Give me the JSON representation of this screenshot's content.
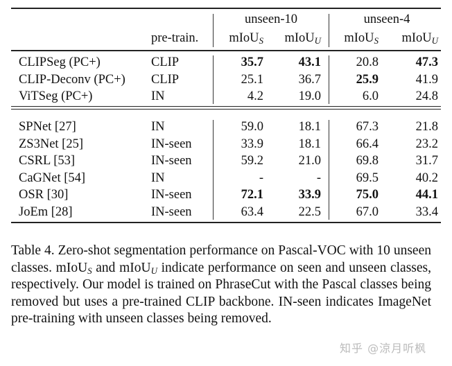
{
  "table": {
    "groups": [
      "unseen-10",
      "unseen-4"
    ],
    "header": {
      "pretrain": "pre-train.",
      "metric_base": "mIoU",
      "sub_seen": "S",
      "sub_unseen": "U"
    },
    "section1": [
      {
        "name": "CLIPSeg (PC+)",
        "pretrain": "CLIP",
        "values": [
          "35.7",
          "43.1",
          "20.8",
          "47.3"
        ],
        "bold": [
          true,
          true,
          false,
          true
        ]
      },
      {
        "name": "CLIP-Deconv (PC+)",
        "pretrain": "CLIP",
        "values": [
          "25.1",
          "36.7",
          "25.9",
          "41.9"
        ],
        "bold": [
          false,
          false,
          true,
          false
        ]
      },
      {
        "name": "ViTSeg (PC+)",
        "pretrain": "IN",
        "values": [
          "4.2",
          "19.0",
          "6.0",
          "24.8"
        ],
        "bold": [
          false,
          false,
          false,
          false
        ]
      }
    ],
    "section2": [
      {
        "name": "SPNet [27]",
        "pretrain": "IN",
        "values": [
          "59.0",
          "18.1",
          "67.3",
          "21.8"
        ],
        "bold": [
          false,
          false,
          false,
          false
        ]
      },
      {
        "name": "ZS3Net [25]",
        "pretrain": "IN-seen",
        "values": [
          "33.9",
          "18.1",
          "66.4",
          "23.2"
        ],
        "bold": [
          false,
          false,
          false,
          false
        ]
      },
      {
        "name": "CSRL [53]",
        "pretrain": "IN-seen",
        "values": [
          "59.2",
          "21.0",
          "69.8",
          "31.7"
        ],
        "bold": [
          false,
          false,
          false,
          false
        ]
      },
      {
        "name": "CaGNet [54]",
        "pretrain": "IN",
        "values": [
          "-",
          "-",
          "69.5",
          "40.2"
        ],
        "bold": [
          false,
          false,
          false,
          false
        ]
      },
      {
        "name": "OSR [30]",
        "pretrain": "IN-seen",
        "values": [
          "72.1",
          "33.9",
          "75.0",
          "44.1"
        ],
        "bold": [
          true,
          true,
          true,
          true
        ]
      },
      {
        "name": "JoEm [28]",
        "pretrain": "IN-seen",
        "values": [
          "63.4",
          "22.5",
          "67.0",
          "33.4"
        ],
        "bold": [
          false,
          false,
          false,
          false
        ]
      }
    ]
  },
  "caption": "Table 4.  Zero-shot segmentation performance on Pascal-VOC with 10 unseen classes. mIoU_S and mIoU_U indicate performance on seen and unseen classes, respectively. Our model is trained on PhraseCut with the Pascal classes being removed but uses a pre-trained CLIP backbone. IN-seen indicates ImageNet pre-training with unseen classes being removed.",
  "caption_parts": {
    "label": "Table 4.",
    "t1": " Zero-shot segmentation performance on Pascal-VOC with 10 unseen classes. ",
    "m": "mIoU",
    "s": "S",
    "and": " and ",
    "u": "U",
    "t2": " indicate performance on seen and unseen classes, respectively. Our model is trained on PhraseCut with the Pascal classes being removed but uses a pre-trained CLIP backbone. IN-seen indicates ImageNet pre-training with unseen classes being removed."
  },
  "watermark": "知乎 @涼月听枫"
}
